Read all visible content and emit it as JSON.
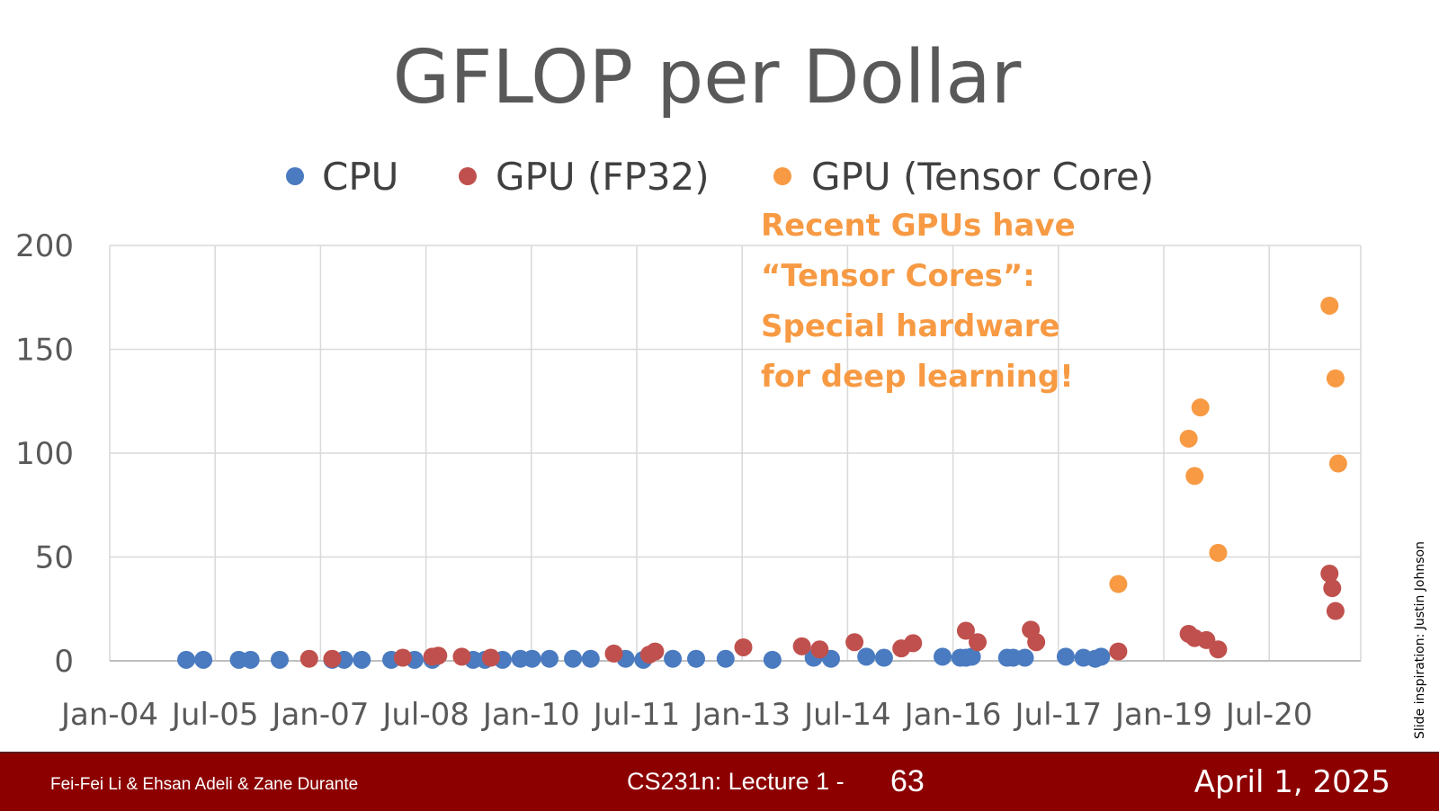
{
  "colors": {
    "cpu": "#4a7bc0",
    "gpu_fp32": "#c0504d",
    "gpu_tensor": "#f79a43",
    "annotation": "#f79a43",
    "footer_bg": "#8c0000"
  },
  "chart_data": {
    "type": "scatter",
    "title": "GFLOP per Dollar",
    "xlabel": "",
    "ylabel": "",
    "ylim": [
      0,
      200
    ],
    "xlim": [
      "2004-01-01",
      "2021-08-01"
    ],
    "y_ticks": [
      0,
      50,
      100,
      150,
      200
    ],
    "x_tick_labels": [
      "Jan-04",
      "Jul-05",
      "Jan-07",
      "Jul-08",
      "Jan-10",
      "Jul-11",
      "Jan-13",
      "Jul-14",
      "Jan-16",
      "Jul-17",
      "Jan-19",
      "Jul-20"
    ],
    "grid": true,
    "legend": "top",
    "series": [
      {
        "name": "CPU",
        "color": "#4a7bc0",
        "points": [
          [
            "2005-02-01",
            0.5
          ],
          [
            "2005-05-01",
            0.5
          ],
          [
            "2005-11-01",
            0.5
          ],
          [
            "2006-01-01",
            0.5
          ],
          [
            "2006-06-01",
            0.5
          ],
          [
            "2007-03-01",
            0.5
          ],
          [
            "2007-05-01",
            0.5
          ],
          [
            "2007-08-01",
            0.5
          ],
          [
            "2008-01-01",
            0.5
          ],
          [
            "2008-05-01",
            0.5
          ],
          [
            "2008-08-01",
            0.5
          ],
          [
            "2009-03-01",
            0.5
          ],
          [
            "2009-05-01",
            0.5
          ],
          [
            "2009-08-01",
            0.5
          ],
          [
            "2009-11-01",
            1
          ],
          [
            "2010-01-01",
            1
          ],
          [
            "2010-04-01",
            1
          ],
          [
            "2010-08-01",
            1
          ],
          [
            "2010-11-01",
            1
          ],
          [
            "2011-05-01",
            1
          ],
          [
            "2011-08-01",
            0.5
          ],
          [
            "2012-01-01",
            1
          ],
          [
            "2012-05-01",
            1
          ],
          [
            "2012-10-01",
            1
          ],
          [
            "2013-06-01",
            0.5
          ],
          [
            "2014-01-01",
            1.5
          ],
          [
            "2014-04-01",
            1
          ],
          [
            "2014-10-01",
            2
          ],
          [
            "2015-01-01",
            1.5
          ],
          [
            "2015-11-01",
            2
          ],
          [
            "2016-02-01",
            1.5
          ],
          [
            "2016-03-01",
            1.5
          ],
          [
            "2016-04-01",
            2
          ],
          [
            "2016-10-01",
            1.5
          ],
          [
            "2016-11-01",
            1.5
          ],
          [
            "2017-01-01",
            1.5
          ],
          [
            "2017-08-01",
            2
          ],
          [
            "2017-11-01",
            1.5
          ],
          [
            "2018-01-01",
            1
          ],
          [
            "2018-02-01",
            2
          ]
        ]
      },
      {
        "name": "GPU (FP32)",
        "color": "#c0504d",
        "points": [
          [
            "2006-11-01",
            1
          ],
          [
            "2007-03-01",
            1
          ],
          [
            "2008-03-01",
            1.5
          ],
          [
            "2008-08-01",
            2
          ],
          [
            "2008-09-01",
            2.5
          ],
          [
            "2009-01-01",
            2
          ],
          [
            "2009-06-01",
            1.5
          ],
          [
            "2011-03-01",
            3.5
          ],
          [
            "2011-09-01",
            3
          ],
          [
            "2011-10-01",
            4.5
          ],
          [
            "2013-01-01",
            6.5
          ],
          [
            "2013-11-01",
            7
          ],
          [
            "2014-02-01",
            5.5
          ],
          [
            "2014-08-01",
            9
          ],
          [
            "2015-04-01",
            6
          ],
          [
            "2015-06-01",
            8.5
          ],
          [
            "2016-03-01",
            14.5
          ],
          [
            "2016-05-01",
            9
          ],
          [
            "2017-02-01",
            15
          ],
          [
            "2017-03-01",
            9
          ],
          [
            "2018-05-01",
            4.5
          ],
          [
            "2019-05-01",
            13
          ],
          [
            "2019-06-01",
            11
          ],
          [
            "2019-08-01",
            10
          ],
          [
            "2019-10-01",
            5.5
          ],
          [
            "2021-05-01",
            42
          ],
          [
            "2021-05-15",
            35
          ],
          [
            "2021-06-01",
            24
          ]
        ]
      },
      {
        "name": "GPU (Tensor Core)",
        "color": "#f79a43",
        "points": [
          [
            "2018-05-01",
            37
          ],
          [
            "2019-05-01",
            107
          ],
          [
            "2019-06-01",
            89
          ],
          [
            "2019-07-01",
            122
          ],
          [
            "2019-10-01",
            52
          ],
          [
            "2021-05-01",
            171
          ],
          [
            "2021-06-01",
            136
          ],
          [
            "2021-06-15",
            95
          ]
        ]
      }
    ],
    "annotation": [
      "Recent GPUs have",
      "“Tensor Cores”:",
      "Special hardware",
      "for deep learning!"
    ]
  },
  "credit": "Slide inspiration: Justin Johnson",
  "footer": {
    "authors": "Fei-Fei Li & Ehsan Adeli & Zane Durante",
    "course": "CS231n: Lecture 1 -",
    "slide_number": "63",
    "date": "April 1, 2025"
  }
}
